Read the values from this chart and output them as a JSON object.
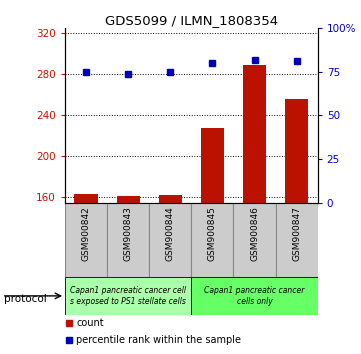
{
  "title": "GDS5099 / ILMN_1808354",
  "samples": [
    "GSM900842",
    "GSM900843",
    "GSM900844",
    "GSM900845",
    "GSM900846",
    "GSM900847"
  ],
  "counts": [
    163,
    161,
    162,
    228,
    289,
    256
  ],
  "percentile_ranks": [
    75,
    74,
    75,
    80,
    82,
    81
  ],
  "ylim_left": [
    155,
    325
  ],
  "yticks_left": [
    160,
    200,
    240,
    280,
    320
  ],
  "ylim_right": [
    0,
    100
  ],
  "yticks_right": [
    0,
    25,
    50,
    75,
    100
  ],
  "bar_color": "#bb1100",
  "dot_color": "#0000bb",
  "protocol_groups": [
    {
      "label": "Capan1 pancreatic cancer cell\ns exposed to PS1 stellate cells",
      "samples": [
        0,
        1,
        2
      ],
      "color": "#aaffaa"
    },
    {
      "label": "Capan1 pancreatic cancer\ncells only",
      "samples": [
        3,
        4,
        5
      ],
      "color": "#66ff66"
    }
  ],
  "legend_count_label": "count",
  "legend_percentile_label": "percentile rank within the sample",
  "protocol_label": "protocol",
  "background_color": "#ffffff",
  "left_tick_color": "#cc1100",
  "right_tick_color": "#0000cc",
  "sample_box_color": "#cccccc",
  "sample_box_edge_color": "#888888"
}
